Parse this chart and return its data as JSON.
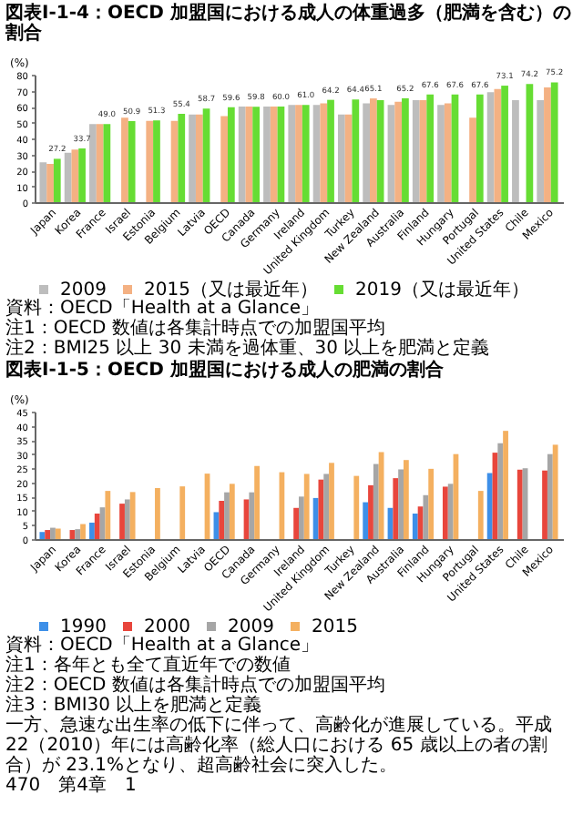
{
  "chart_data": [
    {
      "type": "bar",
      "title": "図表Ⅰ-1-4：OECD 加盟国における成人の体重過多（肥満を含む）の割合",
      "ylabel": "(%)",
      "categories": [
        "Japan",
        "Korea",
        "France",
        "Israel",
        "Estonia",
        "Belgium",
        "Latvia",
        "OECD",
        "Canada",
        "Germany",
        "Ireland",
        "United Kingdom",
        "Turkey",
        "New Zealand",
        "Australia",
        "Finland",
        "Hungary",
        "Portugal",
        "United States",
        "Chile",
        "Mexico"
      ],
      "series": [
        {
          "name": "2009",
          "color": "#bdbdbd",
          "values": [
            25,
            31,
            49,
            null,
            null,
            null,
            55,
            null,
            60,
            60,
            61,
            61,
            55,
            62,
            61,
            64,
            61,
            null,
            69,
            64,
            64
          ]
        },
        {
          "name": "2015（又は最近年）",
          "color": "#f4b183",
          "values": [
            24,
            33,
            49,
            53,
            51,
            51,
            55,
            54,
            60,
            60,
            61,
            62,
            55,
            65.1,
            63,
            64,
            62,
            53,
            71,
            null,
            72
          ],
          "value_labels": [
            null,
            null,
            null,
            null,
            null,
            null,
            null,
            null,
            null,
            null,
            null,
            null,
            null,
            "65.1",
            null,
            null,
            null,
            null,
            null,
            null,
            null
          ]
        },
        {
          "name": "2019（又は最近年）",
          "color": "#66dd33",
          "values": [
            27.2,
            33.7,
            49.0,
            50.9,
            51.3,
            55.4,
            58.7,
            59.6,
            59.8,
            60.0,
            61.0,
            64.2,
            64.4,
            64,
            65.2,
            67.6,
            67.6,
            67.6,
            73.1,
            74.2,
            75.2
          ],
          "value_labels": [
            "27.2",
            "33.7",
            "49.0",
            "50.9",
            "51.3",
            "55.4",
            "58.7",
            "59.6",
            "59.8",
            "60.0",
            "61.0",
            "64.2",
            "64.4",
            null,
            "65.2",
            "67.6",
            "67.6",
            "67.6",
            "73.1",
            "74.2",
            "75.2"
          ]
        }
      ],
      "ylim": [
        0,
        80
      ],
      "yticks": [
        0,
        10,
        20,
        30,
        40,
        50,
        60,
        70,
        80
      ],
      "legend": "bottom",
      "annotations": [
        "資料：OECD「Health at a Glance」",
        "注1：OECD 数値は各集計時点での加盟国平均",
        "注2：BMI25 以上 30 未満を過体重、30 以上を肥満と定義"
      ]
    },
    {
      "type": "bar",
      "title": "図表Ⅰ-1-5：OECD 加盟国における成人の肥満の割合",
      "ylabel": "(%)",
      "categories": [
        "Japan",
        "Korea",
        "France",
        "Israel",
        "Estonia",
        "Belgium",
        "Latvia",
        "OECD",
        "Canada",
        "Germany",
        "Ireland",
        "United Kingdom",
        "Turkey",
        "New Zealand",
        "Australia",
        "Finland",
        "Hungary",
        "Portugal",
        "United States",
        "Chile",
        "Mexico"
      ],
      "series": [
        {
          "name": "1990",
          "color": "#3d8fe8",
          "values": [
            2.5,
            null,
            5.8,
            null,
            null,
            null,
            null,
            9.5,
            null,
            null,
            null,
            14.5,
            null,
            13,
            11,
            9,
            null,
            null,
            23.3,
            null,
            null
          ]
        },
        {
          "name": "2000",
          "color": "#e8463c",
          "values": [
            3.2,
            3.2,
            9.0,
            12.5,
            null,
            null,
            null,
            13.5,
            14,
            null,
            11,
            21,
            null,
            19,
            21.5,
            11.5,
            18.5,
            null,
            30.5,
            24.5,
            24.2
          ]
        },
        {
          "name": "2009",
          "color": "#a6a6a6",
          "values": [
            4.0,
            3.5,
            11.2,
            14,
            null,
            null,
            null,
            16.5,
            16.5,
            null,
            15,
            23,
            null,
            26.5,
            24.6,
            15.5,
            19.5,
            null,
            33.8,
            25,
            30
          ]
        },
        {
          "name": "2015",
          "color": "#f4b060",
          "values": [
            3.7,
            5.3,
            17,
            16.6,
            18,
            18.6,
            23.1,
            19.5,
            25.8,
            23.6,
            23,
            26.9,
            22.3,
            30.7,
            27.9,
            24.8,
            30,
            17,
            38.2,
            null,
            33.3
          ]
        }
      ],
      "ylim": [
        0,
        45
      ],
      "yticks": [
        0,
        5,
        10,
        15,
        20,
        25,
        30,
        35,
        40,
        45
      ],
      "legend": "bottom",
      "annotations": [
        "資料：OECD「Health at a Glance」",
        "注1：各年とも全て直近年での数値",
        "注2：OECD 数値は各集計時点での加盟国平均",
        "注3：BMI30 以上を肥満と定義",
        "一方、急速な出生率の低下に伴って、高齢化が進展している。平成 22（2010）年には高齢化率（総人口における 65 歳以上の者の割合）が 23.1%となり、超高齢社会に突入した。",
        "470　第4章　1"
      ]
    }
  ]
}
